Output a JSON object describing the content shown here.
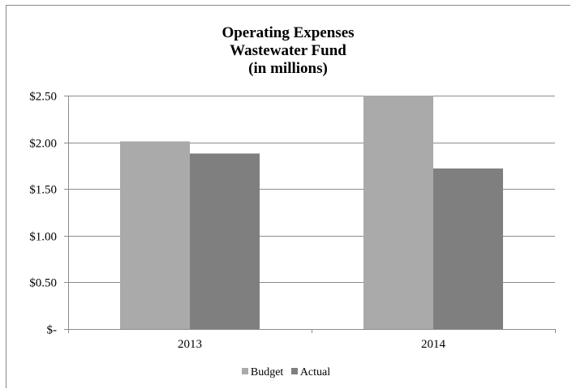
{
  "chart_data": {
    "type": "bar",
    "title_lines": [
      "Operating Expenses",
      "Wastewater Fund",
      "(in millions)"
    ],
    "categories": [
      "2013",
      "2014"
    ],
    "series": [
      {
        "name": "Budget",
        "values": [
          2.01,
          2.5
        ],
        "color": "#aaaaaa"
      },
      {
        "name": "Actual",
        "values": [
          1.88,
          1.72
        ],
        "color": "#7f7f7f"
      }
    ],
    "ylim": [
      0,
      2.5
    ],
    "y_ticks": [
      0,
      0.5,
      1.0,
      1.5,
      2.0,
      2.5
    ],
    "y_tick_labels": [
      "$-",
      "$0.50",
      "$1.00",
      "$1.50",
      "$2.00",
      "$2.50"
    ],
    "grid": true,
    "legend_position": "bottom",
    "gridline_color": "#8c8c8c"
  }
}
